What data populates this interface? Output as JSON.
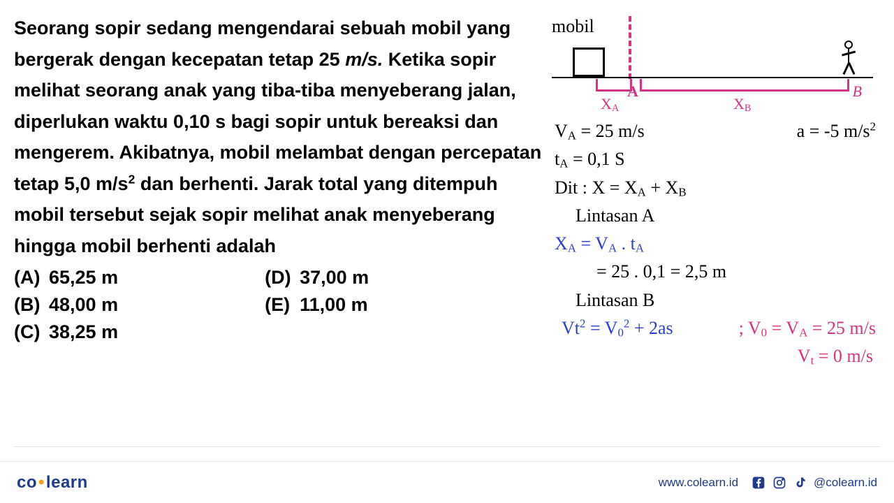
{
  "problem": {
    "text": "Seorang sopir sedang mengendarai sebuah mobil yang bergerak dengan kecepatan tetap 25 <i>m/s.</i> Ketika sopir melihat seorang anak yang tiba-tiba menyeberang jalan, diperlukan waktu 0,10 s bagi sopir untuk bereaksi dan mengerem. Akibatnya, mobil melambat dengan percepatan tetap 5,0 m/s<sup>2</sup> dan berhenti. Jarak total yang ditempuh mobil tersebut sejak sopir melihat anak menyeberang hingga mobil berhenti adalah",
    "options": {
      "A": "65,25 m",
      "B": "48,00 m",
      "C": "38,25 m",
      "D": "37,00 m",
      "E": "11,00 m"
    }
  },
  "diagram": {
    "label_car": "mobil",
    "pointA": "A",
    "pointB": "B",
    "xa": "X",
    "xa_sub": "A",
    "xb": "X",
    "xb_sub": "B",
    "colors": {
      "annotation": "#d63384",
      "line": "#000000"
    }
  },
  "work": {
    "line1a": "V<sub>A</sub> = 25 m/s",
    "line1b": "a = -5 m/s<sup>2</sup>",
    "line2": "t<sub>A</sub> = 0,1 S",
    "line3": "Dit : X = X<sub>A</sub> + X<sub>B</sub>",
    "line4": "Lintasan A",
    "line5": "X<sub>A</sub> = V<sub>A</sub> . t<sub>A</sub>",
    "line6": "= 25 . 0,1 = 2,5 m",
    "line7": "Lintasan B",
    "line8a": "Vt<sup>2</sup> = V<sub>0</sub><sup>2</sup> + 2as",
    "line8b": "; V<sub>0</sub> = V<sub>A</sub> = 25 m/s",
    "line9": "V<sub>t</sub> = 0 m/s",
    "colors": {
      "black": "#000000",
      "blue": "#2a3fd1",
      "pink": "#d63384"
    }
  },
  "footer": {
    "logo_left": "co",
    "logo_right": "learn",
    "url": "www.colearn.id",
    "handle": "@colearn.id"
  }
}
